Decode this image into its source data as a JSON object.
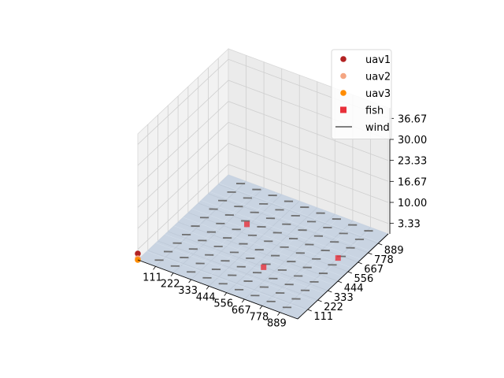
{
  "chart_data": {
    "type": "scatter",
    "projection": "3d",
    "title": "",
    "xlabel": "",
    "ylabel": "",
    "zlabel": "",
    "xlim": [
      0,
      1000
    ],
    "ylim": [
      0,
      1000
    ],
    "zlim": [
      0,
      40
    ],
    "x_ticks": [
      "111",
      "222",
      "333",
      "444",
      "556",
      "667",
      "778",
      "889"
    ],
    "y_ticks": [
      "111",
      "222",
      "333",
      "444",
      "556",
      "667",
      "778",
      "889"
    ],
    "z_ticks": [
      "3.33",
      "10.00",
      "16.67",
      "23.33",
      "30.00",
      "36.67"
    ],
    "grid": true,
    "legend_position": "top-right",
    "surface": {
      "z": 0,
      "color": "#b0c4de"
    },
    "series": [
      {
        "name": "uav1",
        "marker": "circle",
        "color": "#b22222",
        "points": [
          {
            "x": 0,
            "y": 0,
            "z": 2
          }
        ]
      },
      {
        "name": "uav2",
        "marker": "circle",
        "color": "#f4a582",
        "points": [
          {
            "x": 0,
            "y": 0,
            "z": 0.5
          }
        ]
      },
      {
        "name": "uav3",
        "marker": "circle",
        "color": "#ff8c00",
        "points": [
          {
            "x": 0,
            "y": 0,
            "z": 0
          }
        ]
      },
      {
        "name": "fish",
        "marker": "square",
        "color": "#e8303a",
        "points": [
          {
            "x": 320,
            "y": 640,
            "z": 0
          },
          {
            "x": 600,
            "y": 330,
            "z": 0
          },
          {
            "x": 890,
            "y": 640,
            "z": 0
          }
        ]
      },
      {
        "name": "wind",
        "marker": "line",
        "color": "#6e6e6e",
        "field": {
          "u": 1,
          "v": 0.15,
          "grid_x": [
            100,
            900
          ],
          "grid_y": [
            50,
            950
          ],
          "nx": 9,
          "ny": 10
        }
      }
    ]
  }
}
